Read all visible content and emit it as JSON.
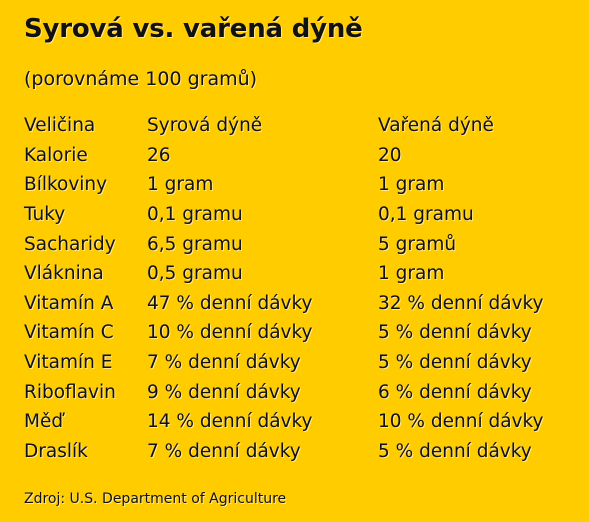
{
  "title": "Syrová vs. vařená dýně",
  "subtitle": "(porovnáme 100 gramů)",
  "table": {
    "headers": [
      "Veličina",
      "Syrová dýně",
      "Vařená dýně"
    ],
    "rows": [
      [
        "Kalorie",
        "26",
        "20"
      ],
      [
        "Bílkoviny",
        "1 gram",
        "1 gram"
      ],
      [
        "Tuky",
        "0,1 gramu",
        "0,1 gramu"
      ],
      [
        "Sacharidy",
        "6,5 gramu",
        "5 gramů"
      ],
      [
        "Vláknina",
        "0,5 gramu",
        "1 gram"
      ],
      [
        "Vitamín A",
        "47 % denní dávky",
        "32 % denní dávky"
      ],
      [
        "Vitamín C",
        "10 % denní dávky",
        "5 % denní dávky"
      ],
      [
        "Vitamín E",
        "7 % denní dávky",
        "5 % denní dávky"
      ],
      [
        "Riboflavin",
        "9 % denní dávky",
        "6 % denní dávky"
      ],
      [
        "Měď",
        "14 % denní dávky",
        "10 % denní dávky"
      ],
      [
        "Draslík",
        "7 % denní dávky",
        "5 % denní dávky"
      ]
    ]
  },
  "source": "Zdroj: U.S. Department of Agriculture",
  "colors": {
    "background": "#FFCC00",
    "text": "#111111"
  }
}
